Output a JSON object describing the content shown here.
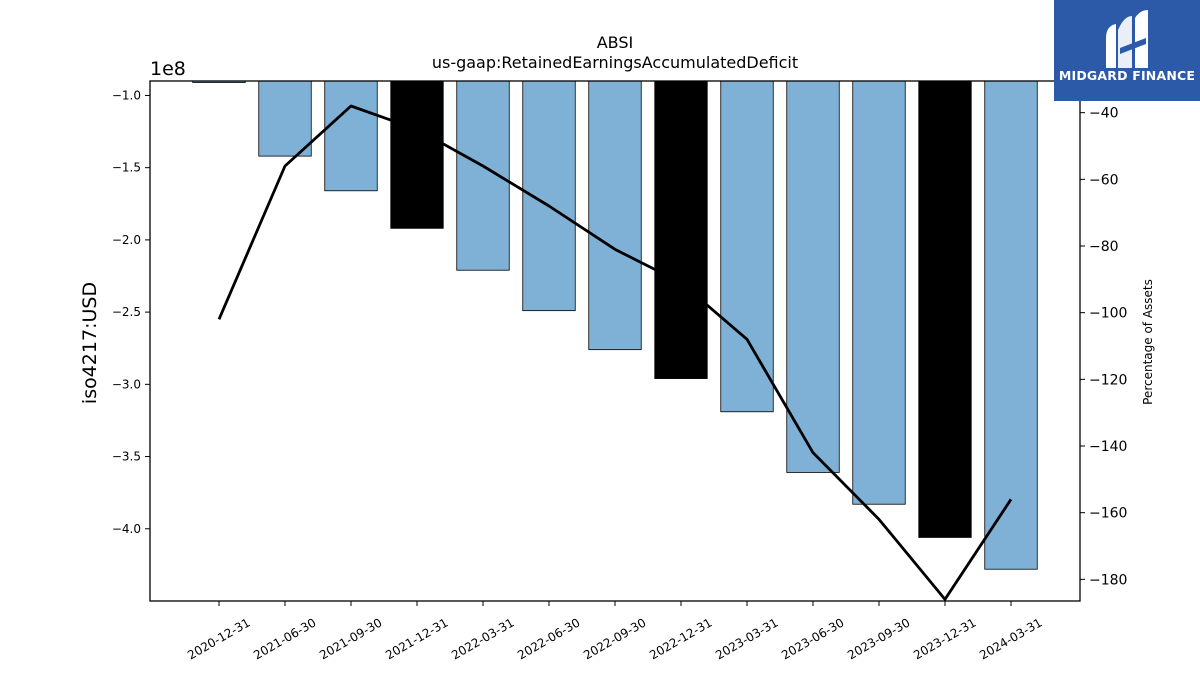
{
  "chart_data": {
    "type": "bar",
    "title": "ABSI",
    "subtitle": "us-gaap:RetainedEarningsAccumulatedDeficit",
    "ylabel": "iso4217:USD",
    "y2label": "Percentage of Assets",
    "y_offset_label": "1e8",
    "ylim": [
      -4.5,
      -0.9
    ],
    "y2lim": [
      -186.5,
      -30.5
    ],
    "yticks": [
      "-1.0",
      "-1.5",
      "-2.0",
      "-2.5",
      "-3.0",
      "-3.5",
      "-4.0"
    ],
    "y2ticks": [
      "-40",
      "-60",
      "-80",
      "-100",
      "-120",
      "-140",
      "-160",
      "-180"
    ],
    "categories": [
      "2020-12-31",
      "2021-06-30",
      "2021-09-30",
      "2021-12-31",
      "2022-03-31",
      "2022-06-30",
      "2022-09-30",
      "2022-12-31",
      "2023-03-31",
      "2023-06-30",
      "2023-09-30",
      "2023-12-31",
      "2024-03-31"
    ],
    "values": [
      -0.91,
      -1.42,
      -1.66,
      -1.92,
      -2.21,
      -2.49,
      -2.76,
      -2.96,
      -3.19,
      -3.61,
      -3.83,
      -4.06,
      -4.28
    ],
    "bar_colors": [
      "#7fb0d5",
      "#7fb0d5",
      "#7fb0d5",
      "#000000",
      "#7fb0d5",
      "#7fb0d5",
      "#7fb0d5",
      "#000000",
      "#7fb0d5",
      "#7fb0d5",
      "#7fb0d5",
      "#000000",
      "#7fb0d5"
    ],
    "line_values": [
      -102,
      -56,
      -38,
      -45,
      -56,
      -68,
      -81,
      -91,
      -108,
      -142,
      -162,
      -186,
      -156
    ],
    "line_color": "#000000",
    "grid": false
  },
  "logo": {
    "text": "MIDGARD FINANCE",
    "background": "#2c5aa8"
  }
}
